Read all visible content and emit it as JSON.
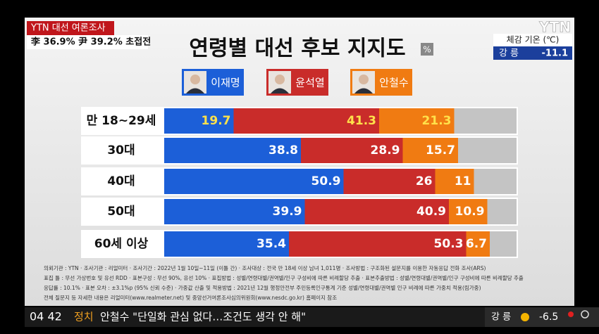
{
  "header": {
    "badge": "YTN 대선 여론조사",
    "headline": "李 36.9% 尹 39.2% 초접전"
  },
  "weather_box": {
    "logo": "YTN",
    "label": "체감 기온 (℃)",
    "city": "강 릉",
    "value": "-11.1"
  },
  "chart_data": {
    "type": "bar",
    "orientation": "horizontal",
    "stacked": true,
    "title": "연령별 대선 후보 지지도",
    "unit": "%",
    "categories": [
      "만 18~29세",
      "30대",
      "40대",
      "50대",
      "60세 이상"
    ],
    "series": [
      {
        "name": "이재명",
        "color": "#1c5fd8",
        "values": [
          19.7,
          38.8,
          50.9,
          39.9,
          35.4
        ]
      },
      {
        "name": "윤석열",
        "color": "#c92c2a",
        "values": [
          41.3,
          28.9,
          26,
          40.9,
          50.3
        ]
      },
      {
        "name": "안철수",
        "color": "#f07b12",
        "values": [
          21.3,
          15.7,
          11,
          10.9,
          6.7
        ]
      }
    ],
    "xlim": [
      0,
      100
    ]
  },
  "footnotes": [
    "의뢰기관 : YTN   ·  조사기관 : 리얼미터   ·  조사기간 : 2022년 1월 10일~11일 (이틀 간)   ·  조사대상 : 전국 만 18세 이상 남녀 1,011명   ·  조사방법 : 구조화된 설문지를 이용한 자동응답 전화 조사(ARS)",
    "표집 틀 : 무선 가상번호 및 유선 RDD   ·  표본구성 : 무선 90%, 유선 10%   ·  표집방법 : 성별/연령대별/권역별/인구 구성비에 따른 비례할당 추출   ·  표본추출방법 : 성별/연령대별/권역별/인구 구성비에 따른 비례할당 추출",
    "응답률 : 10.1%   ·  표본 오차 : ±3.1%p (95% 신뢰 수준)   ·  가중값 산출 및 적용방법 : 2021년 12월 행정안전부 주민등록인구통계 기준 성별/연령대별/권역별 인구 비례에 따른 가중치 적용(림가중)",
    "전체 질문지 등 자세한 내용은 리얼미터(www.realmeter.net) 및 중앙선거여론조사심의위원회(www.nesdc.go.kr) 홈페이지 참조"
  ],
  "ticker": {
    "time": "04 42",
    "section": "정치",
    "headline": "안철수 \"단일화 관심 없다…조건도 생각 안 해\"",
    "city": "강 릉",
    "temperature": "-6.5"
  }
}
